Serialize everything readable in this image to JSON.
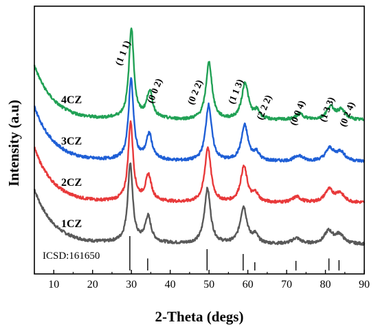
{
  "chart_data": {
    "type": "line",
    "xlabel": "2-Theta (degs)",
    "ylabel": "Intensity (a.u)",
    "xlim": [
      5,
      90
    ],
    "xticks": [
      10,
      20,
      30,
      40,
      50,
      60,
      70,
      80,
      90
    ],
    "ytick_labels": false,
    "reference": {
      "label": "ICSD:161650",
      "positions": [
        29.6,
        34.2,
        49.5,
        58.8,
        61.8,
        72.4,
        80.9,
        83.5
      ],
      "heights": [
        1.0,
        0.35,
        0.62,
        0.48,
        0.24,
        0.28,
        0.35,
        0.3
      ]
    },
    "peak_labels": [
      {
        "text": "(1 1 1)",
        "x": 27.3
      },
      {
        "text": "(0 0 2)",
        "x": 35.5
      },
      {
        "text": "(0 2 2)",
        "x": 45.9
      },
      {
        "text": "(1 1 3)",
        "x": 56.4
      },
      {
        "text": "(2 2 2)",
        "x": 63.7
      },
      {
        "text": "(0 0 4)",
        "x": 72.3
      },
      {
        "text": "(1 3 3)",
        "x": 79.9
      },
      {
        "text": "(0 2 4)",
        "x": 85.1
      }
    ],
    "series": [
      {
        "name": "1CZ",
        "color": "#595959",
        "offset": 0,
        "peaks": [
          29.7,
          34.3,
          49.6,
          58.9,
          61.9,
          72.5,
          80.8,
          83.6
        ],
        "heights": [
          68,
          22,
          48,
          32,
          7,
          5,
          11,
          8
        ],
        "widths": [
          0.75,
          0.9,
          0.95,
          1.05,
          0.9,
          1.3,
          1.3,
          1.3
        ]
      },
      {
        "name": "2CZ",
        "color": "#e8393a",
        "offset": 1,
        "peaks": [
          29.8,
          34.4,
          49.7,
          59.0,
          62.0,
          72.6,
          80.9,
          83.7
        ],
        "heights": [
          68,
          22,
          48,
          31,
          7,
          5,
          11,
          8
        ],
        "widths": [
          0.75,
          0.9,
          0.95,
          1.05,
          0.9,
          1.3,
          1.3,
          1.3
        ]
      },
      {
        "name": "3CZ",
        "color": "#1f5fd6",
        "offset": 2,
        "peaks": [
          29.9,
          34.6,
          49.9,
          59.2,
          62.2,
          73.1,
          81.1,
          83.9
        ],
        "heights": [
          70,
          22,
          49,
          31,
          7,
          5,
          11,
          8
        ],
        "widths": [
          0.75,
          0.9,
          0.95,
          1.05,
          0.9,
          1.3,
          1.3,
          1.3
        ]
      },
      {
        "name": "4CZ",
        "color": "#21a155",
        "offset": 3,
        "peaks": [
          30.0,
          34.7,
          50.0,
          59.3,
          62.4,
          73.4,
          81.3,
          84.1
        ],
        "heights": [
          78,
          23,
          50,
          32,
          7,
          5,
          11,
          8
        ],
        "widths": [
          0.75,
          0.9,
          0.95,
          1.05,
          0.9,
          1.3,
          1.3,
          1.3
        ]
      }
    ]
  }
}
